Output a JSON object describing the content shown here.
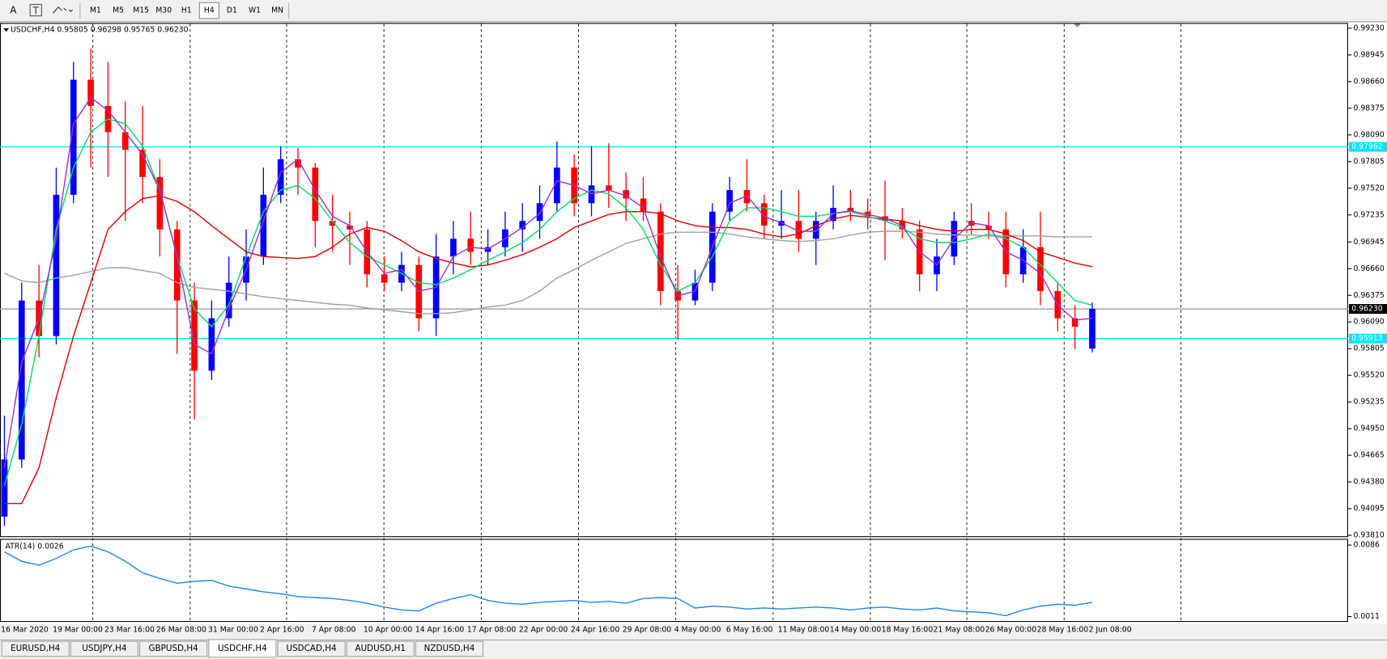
{
  "toolbar": {
    "text_tool": "A",
    "timeframes": [
      "M1",
      "M5",
      "M15",
      "M30",
      "H1",
      "H4",
      "D1",
      "W1",
      "MN"
    ],
    "active_timeframe": "H4"
  },
  "chart_data": [
    {
      "type": "candlestick",
      "title": "USDCHF,H4 0.95805 0.96298 0.95765 0.96230",
      "categories": [
        "16 Mar 2020",
        null,
        null,
        "19 Mar 00:00",
        null,
        null,
        "23 Mar 16:00",
        null,
        null,
        "26 Mar 08:00",
        null,
        null,
        "31 Mar 00:00",
        null,
        null,
        "2 Apr 16:00",
        null,
        null,
        "7 Apr 08:00",
        null,
        null,
        "10 Apr 00:00",
        null,
        null,
        "14 Apr 16:00",
        null,
        null,
        "17 Apr 08:00",
        null,
        null,
        "22 Apr 00:00",
        null,
        null,
        "24 Apr 16:00",
        null,
        null,
        "29 Apr 08:00",
        null,
        null,
        "4 May 00:00",
        null,
        null,
        "6 May 16:00",
        null,
        null,
        "11 May 08:00",
        null,
        null,
        "14 May 00:00",
        null,
        null,
        "18 May 16:00",
        null,
        null,
        "21 May 08:00",
        null,
        null,
        "26 May 00:00",
        null,
        null,
        "28 May 16:00",
        null,
        null,
        "2 Jun 08:00"
      ],
      "open": [
        0.9401,
        0.9462,
        0.9632,
        0.9594,
        0.9745,
        0.9868,
        0.984,
        0.9812,
        0.9793,
        0.9764,
        0.9708,
        0.9632,
        0.9557,
        0.9613,
        0.9651,
        0.9679,
        0.9745,
        0.9783,
        0.9774,
        0.9717,
        0.9712,
        0.9708,
        0.966,
        0.9651,
        0.967,
        0.9613,
        0.9679,
        0.9698,
        0.9684,
        0.9689,
        0.9708,
        0.9717,
        0.9736,
        0.9774,
        0.9736,
        0.9755,
        0.975,
        0.9741,
        0.9727,
        0.9642,
        0.9632,
        0.9651,
        0.9727,
        0.975,
        0.9736,
        0.9712,
        0.9717,
        0.9698,
        0.9717,
        0.9731,
        0.9727,
        0.9722,
        0.9717,
        0.9708,
        0.966,
        0.9679,
        0.9717,
        0.9712,
        0.9708,
        0.966,
        0.9689,
        0.9642,
        0.9613,
        0.95805
      ],
      "high": [
        0.9509,
        0.9651,
        0.967,
        0.9774,
        0.9887,
        0.9901,
        0.9887,
        0.9845,
        0.984,
        0.9783,
        0.9717,
        0.9651,
        0.9632,
        0.9679,
        0.9708,
        0.9774,
        0.9797,
        0.9795,
        0.9779,
        0.9745,
        0.9727,
        0.9717,
        0.9679,
        0.9684,
        0.9679,
        0.9703,
        0.9717,
        0.9727,
        0.9708,
        0.9727,
        0.9736,
        0.9755,
        0.9802,
        0.9788,
        0.9797,
        0.98,
        0.9769,
        0.9764,
        0.9736,
        0.967,
        0.9665,
        0.9736,
        0.9764,
        0.9783,
        0.9745,
        0.975,
        0.975,
        0.9727,
        0.9755,
        0.975,
        0.9741,
        0.976,
        0.9731,
        0.9717,
        0.9698,
        0.9727,
        0.9736,
        0.9727,
        0.9727,
        0.9708,
        0.9727,
        0.9651,
        0.9627,
        0.96298
      ],
      "low": [
        0.9391,
        0.9453,
        0.9571,
        0.9585,
        0.9736,
        0.9774,
        0.9764,
        0.9717,
        0.9736,
        0.9679,
        0.9575,
        0.9505,
        0.9547,
        0.9604,
        0.9632,
        0.967,
        0.9736,
        0.9745,
        0.9689,
        0.9684,
        0.967,
        0.9646,
        0.9642,
        0.9642,
        0.9599,
        0.9594,
        0.966,
        0.967,
        0.967,
        0.9679,
        0.9684,
        0.9698,
        0.9727,
        0.9722,
        0.9722,
        0.9731,
        0.9717,
        0.9717,
        0.9627,
        0.959,
        0.9627,
        0.9642,
        0.9717,
        0.9727,
        0.9698,
        0.9698,
        0.9684,
        0.967,
        0.9708,
        0.9717,
        0.9708,
        0.9675,
        0.9698,
        0.9642,
        0.9642,
        0.967,
        0.9703,
        0.9698,
        0.9646,
        0.9651,
        0.9627,
        0.9599,
        0.958,
        0.95765
      ],
      "close": [
        0.9462,
        0.9632,
        0.9594,
        0.9745,
        0.9868,
        0.984,
        0.9812,
        0.9793,
        0.9764,
        0.9708,
        0.9632,
        0.9557,
        0.9613,
        0.9651,
        0.9679,
        0.9745,
        0.9783,
        0.9774,
        0.9717,
        0.9712,
        0.9708,
        0.966,
        0.9651,
        0.967,
        0.9613,
        0.9679,
        0.9698,
        0.9684,
        0.9689,
        0.9708,
        0.9717,
        0.9736,
        0.9774,
        0.9736,
        0.9755,
        0.975,
        0.9741,
        0.9727,
        0.9642,
        0.9632,
        0.9651,
        0.9727,
        0.975,
        0.9736,
        0.9712,
        0.9717,
        0.9698,
        0.9717,
        0.9731,
        0.9727,
        0.9722,
        0.9717,
        0.9708,
        0.966,
        0.9679,
        0.9717,
        0.9712,
        0.9708,
        0.966,
        0.9689,
        0.9642,
        0.9613,
        0.9604,
        0.9623
      ],
      "up_color": "#0000ff",
      "down_color": "#ff0000",
      "series": [
        {
          "color": "#a0a0a0",
          "values": [
            0.9661,
            0.9653,
            0.9651,
            0.9656,
            0.9659,
            0.9663,
            0.9667,
            0.9667,
            0.9664,
            0.9661,
            0.9651,
            0.9646,
            0.9644,
            0.9642,
            0.9639,
            0.9636,
            0.9634,
            0.9632,
            0.963,
            0.9628,
            0.9627,
            0.9624,
            0.9622,
            0.962,
            0.9618,
            0.9618,
            0.9619,
            0.9622,
            0.9625,
            0.9627,
            0.9632,
            0.9642,
            0.9656,
            0.9665,
            0.9675,
            0.9684,
            0.9693,
            0.9698,
            0.9703,
            0.9705,
            0.9705,
            0.9705,
            0.9703,
            0.97,
            0.9698,
            0.9696,
            0.9695,
            0.9696,
            0.9698,
            0.9702,
            0.9705,
            0.9706,
            0.9706,
            0.9705,
            0.9703,
            0.9702,
            0.9702,
            0.9701,
            0.9701,
            0.9701,
            0.9701,
            0.97,
            0.97,
            0.97
          ]
        },
        {
          "color": "#e00000",
          "values": [
            0.9415,
            0.9415,
            0.9453,
            0.9528,
            0.9594,
            0.9651,
            0.9708,
            0.9727,
            0.9741,
            0.9744,
            0.9738,
            0.9727,
            0.9712,
            0.9698,
            0.9684,
            0.9679,
            0.9678,
            0.9677,
            0.9679,
            0.9689,
            0.9703,
            0.971,
            0.9706,
            0.9696,
            0.9684,
            0.9677,
            0.9672,
            0.9668,
            0.967,
            0.9675,
            0.9681,
            0.9689,
            0.9698,
            0.971,
            0.9717,
            0.9724,
            0.9727,
            0.9727,
            0.9725,
            0.9717,
            0.9712,
            0.971,
            0.971,
            0.9708,
            0.9703,
            0.97,
            0.9703,
            0.9712,
            0.9719,
            0.9723,
            0.9721,
            0.9719,
            0.9717,
            0.9712,
            0.9708,
            0.9706,
            0.9708,
            0.9708,
            0.9703,
            0.9696,
            0.9684,
            0.9678,
            0.9672,
            0.9668
          ]
        },
        {
          "color": "#00dd66",
          "values": [
            0.9434,
            0.95,
            0.9594,
            0.9708,
            0.9774,
            0.9812,
            0.9826,
            0.9821,
            0.9797,
            0.975,
            0.9679,
            0.9623,
            0.9604,
            0.9627,
            0.9679,
            0.9727,
            0.975,
            0.9755,
            0.9741,
            0.9717,
            0.9694,
            0.9679,
            0.967,
            0.9661,
            0.9651,
            0.9649,
            0.9656,
            0.9665,
            0.9675,
            0.9684,
            0.9694,
            0.9708,
            0.9727,
            0.9741,
            0.975,
            0.9746,
            0.9731,
            0.9708,
            0.967,
            0.9642,
            0.9651,
            0.9679,
            0.9717,
            0.9731,
            0.9731,
            0.9727,
            0.9722,
            0.9722,
            0.9725,
            0.9727,
            0.9722,
            0.9717,
            0.971,
            0.9698,
            0.9694,
            0.9694,
            0.9698,
            0.9703,
            0.9698,
            0.9689,
            0.967,
            0.9651,
            0.9632,
            0.9627
          ]
        },
        {
          "color": "#9932cc",
          "values": [
            0.9453,
            0.9566,
            0.9613,
            0.9698,
            0.9821,
            0.9849,
            0.9835,
            0.9812,
            0.9788,
            0.975,
            0.9679,
            0.9585,
            0.9575,
            0.9623,
            0.9665,
            0.9717,
            0.9769,
            0.9783,
            0.975,
            0.9722,
            0.9712,
            0.9684,
            0.9661,
            0.9665,
            0.9642,
            0.9646,
            0.9679,
            0.9689,
            0.9687,
            0.9698,
            0.971,
            0.9725,
            0.976,
            0.9755,
            0.9746,
            0.975,
            0.9744,
            0.9731,
            0.9679,
            0.9637,
            0.9642,
            0.9689,
            0.9736,
            0.9744,
            0.9722,
            0.9715,
            0.9706,
            0.9706,
            0.9725,
            0.9728,
            0.9724,
            0.972,
            0.9712,
            0.9684,
            0.967,
            0.9698,
            0.9715,
            0.9712,
            0.9684,
            0.9675,
            0.9661,
            0.9627,
            0.9611,
            0.9613
          ]
        }
      ],
      "ylim": [
        0.93791,
        0.99277
      ],
      "yticks": [
        {
          "value": 0.9923,
          "label": "0.99230"
        },
        0.98945,
        {
          "value": 0.9866,
          "label": "0.98660"
        },
        0.98375,
        {
          "value": 0.9809,
          "label": "0.98090"
        },
        0.97805,
        {
          "value": 0.9752,
          "label": "0.97520"
        },
        0.97235,
        0.96945,
        {
          "value": 0.9666,
          "label": "0.96660"
        },
        0.96375,
        {
          "value": 0.9609,
          "label": "0.96090"
        },
        0.95805,
        {
          "value": 0.9552,
          "label": "0.95520"
        },
        0.95235,
        {
          "value": 0.9495,
          "label": "0.94950"
        },
        0.94665,
        {
          "value": 0.9438,
          "label": "0.94380"
        },
        0.94095,
        {
          "value": 0.9381,
          "label": "0.93810"
        }
      ],
      "horizontal_lines": [
        {
          "value": 0.97962,
          "label": "0.97962",
          "color": "#00e5ff",
          "label_color": "#ffffff"
        },
        {
          "value": 0.95913,
          "label": "0.95913",
          "color": "#00e5ff",
          "label_color": "#ffffff"
        },
        {
          "value": 0.9623,
          "label": "0.96230",
          "color": "#a0a0a0",
          "label_bg": "#000000",
          "label_color": "#ffffff"
        }
      ]
    },
    {
      "type": "line",
      "title": "ATR(14) 0.0026",
      "series": [
        {
          "color": "#1e88e5",
          "values": [
            0.0079,
            0.0069,
            0.0065,
            0.0072,
            0.0081,
            0.0085,
            0.0079,
            0.0069,
            0.0057,
            0.0051,
            0.0046,
            0.0048,
            0.0049,
            0.0043,
            0.004,
            0.0037,
            0.0035,
            0.0032,
            0.0031,
            0.003,
            0.0028,
            0.0025,
            0.0021,
            0.0018,
            0.0017,
            0.0025,
            0.003,
            0.0034,
            0.0028,
            0.0025,
            0.0024,
            0.0026,
            0.0027,
            0.0028,
            0.0026,
            0.0027,
            0.0025,
            0.003,
            0.0031,
            0.003,
            0.002,
            0.0022,
            0.0021,
            0.0019,
            0.002,
            0.0019,
            0.002,
            0.0021,
            0.002,
            0.0018,
            0.002,
            0.0021,
            0.0019,
            0.0018,
            0.002,
            0.0017,
            0.0016,
            0.0015,
            0.0012,
            0.0018,
            0.0022,
            0.0024,
            0.0023,
            0.0026
          ]
        }
      ],
      "ylim": [
        0.00064,
        0.00916
      ],
      "yticks": [
        0.0086,
        0.0011
      ]
    }
  ],
  "tabs": [
    "EURUSD,H4",
    "USDJPY,H4",
    "GBPUSD,H4",
    "USDCHF,H4",
    "USDCAD,H4",
    "AUDUSD,H1",
    "NZDUSD,H4"
  ],
  "active_tab": "USDCHF,H4"
}
